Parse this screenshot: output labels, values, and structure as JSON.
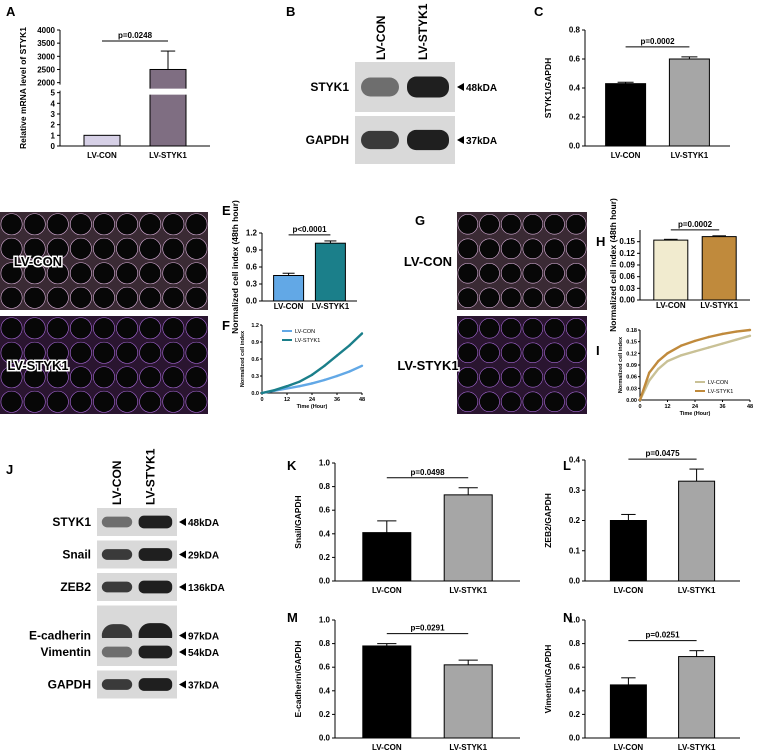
{
  "panels": [
    {
      "id": "A",
      "letter": "A",
      "type": "bar",
      "ylabel": "Relative mRNA level of STYK1",
      "categories": [
        "LV-CON",
        "LV-STYK1"
      ],
      "values": [
        1,
        2500
      ],
      "errors": [
        0,
        700
      ],
      "pvalue": "p=0.0248",
      "broken_axis": true,
      "lower_ticks": [
        "0",
        "1",
        "2",
        "3",
        "4",
        "5"
      ],
      "upper_ticks": [
        "2000",
        "2500",
        "3000",
        "3500",
        "4000"
      ],
      "colors": [
        "#d6d0e6",
        "#7f6e82"
      ]
    },
    {
      "id": "C",
      "letter": "C",
      "type": "bar",
      "ylabel": "STYK1/GAPDH",
      "categories": [
        "LV-CON",
        "LV-STYK1"
      ],
      "values": [
        0.43,
        0.6
      ],
      "errors": [
        0.01,
        0.015
      ],
      "pvalue": "p=0.0002",
      "ylim": [
        0,
        0.8
      ],
      "yticks": [
        "0.0",
        "0.2",
        "0.4",
        "0.6",
        "0.8"
      ],
      "colors": [
        "#000000",
        "#a6a6a6"
      ]
    },
    {
      "id": "E",
      "letter": "E",
      "type": "bar",
      "ylabel": "Normalized cell index (48th hour)",
      "categories": [
        "LV-CON",
        "LV-STYK1"
      ],
      "values": [
        0.45,
        1.02
      ],
      "errors": [
        0.04,
        0.04
      ],
      "pvalue": "p<0.0001",
      "ylim": [
        0,
        1.2
      ],
      "yticks": [
        "0.0",
        "0.3",
        "0.6",
        "0.9",
        "1.2"
      ],
      "colors": [
        "#62a8e6",
        "#1b7f8a"
      ]
    },
    {
      "id": "F",
      "letter": "F",
      "type": "line",
      "ylabel": "Normalized cell index",
      "xlabel": "Time (Hour)",
      "xlim": [
        0,
        48
      ],
      "ylim": [
        0,
        1.2
      ],
      "xticks": [
        "0",
        "12",
        "24",
        "36",
        "48"
      ],
      "yticks": [
        "0.0",
        "0.3",
        "0.6",
        "0.9",
        "1.2"
      ],
      "series": [
        {
          "name": "LV-CON",
          "color": "#62a8e6",
          "x": [
            0,
            6,
            12,
            18,
            24,
            30,
            36,
            42,
            48
          ],
          "y": [
            0,
            0.04,
            0.08,
            0.12,
            0.17,
            0.23,
            0.3,
            0.38,
            0.48
          ]
        },
        {
          "name": "LV-STYK1",
          "color": "#1b7f8a",
          "x": [
            0,
            6,
            12,
            18,
            24,
            30,
            36,
            42,
            48
          ],
          "y": [
            0,
            0.05,
            0.12,
            0.2,
            0.32,
            0.48,
            0.66,
            0.84,
            1.05
          ]
        }
      ]
    },
    {
      "id": "H",
      "letter": "H",
      "type": "bar",
      "ylabel": "Normalized cell index (48th hour)",
      "categories": [
        "LV-CON",
        "LV-STYK1"
      ],
      "values": [
        0.154,
        0.163
      ],
      "errors": [
        0.002,
        0.002
      ],
      "pvalue": "p=0.0002",
      "ylim": [
        0,
        0.18
      ],
      "yticks": [
        "0.00",
        "0.03",
        "0.06",
        "0.09",
        "0.12",
        "0.15"
      ],
      "colors": [
        "#f1ebcf",
        "#c08a3c"
      ]
    },
    {
      "id": "I",
      "letter": "I",
      "type": "line",
      "ylabel": "Normalized cell index",
      "xlabel": "Time (Hour)",
      "xlim": [
        0,
        48
      ],
      "ylim": [
        0,
        0.18
      ],
      "xticks": [
        "0",
        "12",
        "24",
        "36",
        "48"
      ],
      "yticks": [
        "0.00",
        "0.03",
        "0.06",
        "0.09",
        "0.12",
        "0.15",
        "0.18"
      ],
      "series": [
        {
          "name": "LV-CON",
          "color": "#c9c196",
          "x": [
            0,
            4,
            8,
            12,
            18,
            24,
            30,
            36,
            42,
            48
          ],
          "y": [
            0,
            0.05,
            0.08,
            0.1,
            0.115,
            0.125,
            0.135,
            0.145,
            0.155,
            0.165
          ]
        },
        {
          "name": "LV-STYK1",
          "color": "#c08a3c",
          "x": [
            0,
            4,
            8,
            12,
            18,
            24,
            30,
            36,
            42,
            48
          ],
          "y": [
            0,
            0.07,
            0.1,
            0.12,
            0.14,
            0.152,
            0.162,
            0.17,
            0.176,
            0.18
          ]
        }
      ]
    },
    {
      "id": "K",
      "letter": "K",
      "type": "bar",
      "ylabel": "Snail/GAPDH",
      "categories": [
        "LV-CON",
        "LV-STYK1"
      ],
      "values": [
        0.41,
        0.73
      ],
      "errors": [
        0.1,
        0.06
      ],
      "pvalue": "p=0.0498",
      "ylim": [
        0,
        1.0
      ],
      "yticks": [
        "0.0",
        "0.2",
        "0.4",
        "0.6",
        "0.8",
        "1.0"
      ],
      "colors": [
        "#000000",
        "#a6a6a6"
      ]
    },
    {
      "id": "L",
      "letter": "L",
      "type": "bar",
      "ylabel": "ZEB2/GAPDH",
      "categories": [
        "LV-CON",
        "LV-STYK1"
      ],
      "values": [
        0.2,
        0.33
      ],
      "errors": [
        0.02,
        0.04
      ],
      "pvalue": "p=0.0475",
      "ylim": [
        0,
        0.4
      ],
      "yticks": [
        "0.0",
        "0.1",
        "0.2",
        "0.3",
        "0.4"
      ],
      "colors": [
        "#000000",
        "#a6a6a6"
      ]
    },
    {
      "id": "M",
      "letter": "M",
      "type": "bar",
      "ylabel": "E-cadherin/GAPDH",
      "categories": [
        "LV-CON",
        "LV-STYK1"
      ],
      "values": [
        0.78,
        0.62
      ],
      "errors": [
        0.02,
        0.04
      ],
      "pvalue": "p=0.0291",
      "ylim": [
        0,
        1.0
      ],
      "yticks": [
        "0.0",
        "0.2",
        "0.4",
        "0.6",
        "0.8",
        "1.0"
      ],
      "colors": [
        "#000000",
        "#a6a6a6"
      ]
    },
    {
      "id": "N",
      "letter": "N",
      "type": "bar",
      "ylabel": "Vimentin/GAPDH",
      "categories": [
        "LV-CON",
        "LV-STYK1"
      ],
      "values": [
        0.45,
        0.69
      ],
      "errors": [
        0.06,
        0.05
      ],
      "pvalue": "p=0.0251",
      "ylim": [
        0,
        1.0
      ],
      "yticks": [
        "0.0",
        "0.2",
        "0.4",
        "0.6",
        "0.8",
        "1.0"
      ],
      "colors": [
        "#000000",
        "#a6a6a6"
      ]
    }
  ],
  "blot_b": {
    "letter": "B",
    "lanes": [
      "LV-CON",
      "LV-STYK1"
    ],
    "rows": [
      {
        "label": "STYK1",
        "mw": "48kDA"
      },
      {
        "label": "GAPDH",
        "mw": "37kDA"
      }
    ]
  },
  "blot_j": {
    "letter": "J",
    "lanes": [
      "LV-CON",
      "LV-STYK1"
    ],
    "rows": [
      {
        "label": "STYK1",
        "mw": "48kDA"
      },
      {
        "label": "Snail",
        "mw": "29kDA"
      },
      {
        "label": "ZEB2",
        "mw": "136kDA"
      },
      {
        "label": "E-cadherin",
        "mw": "97kDA"
      },
      {
        "label": "Vimentin",
        "mw": "54kDA"
      },
      {
        "label": "GAPDH",
        "mw": "37kDA"
      }
    ]
  },
  "plates": [
    {
      "letter": "D",
      "labels": [
        "LV-CON",
        "LV-STYK1"
      ]
    },
    {
      "letter": "G",
      "labels": [
        "LV-CON",
        "LV-STYK1"
      ]
    }
  ]
}
